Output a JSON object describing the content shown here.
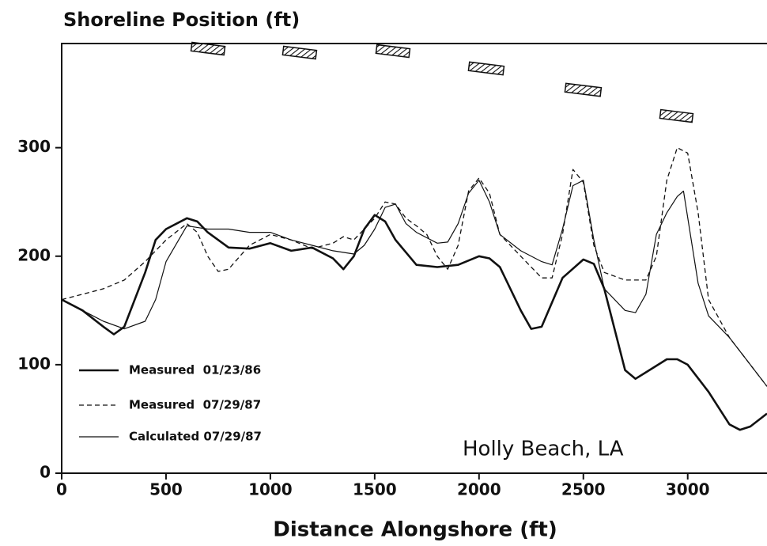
{
  "chart_data": {
    "type": "line",
    "title": "Shoreline Position (ft)",
    "xlabel": "Distance Alongshore (ft)",
    "annotation": "Holly Beach, LA",
    "xlim": [
      0,
      3380
    ],
    "ylim": [
      0,
      396
    ],
    "xticks": [
      0,
      500,
      1000,
      1500,
      2000,
      2500,
      3000
    ],
    "yticks": [
      0,
      100,
      200,
      300
    ],
    "legend": "lower left",
    "series": [
      {
        "name": "Measured  01/23/86",
        "color": "#111111",
        "style": "solid",
        "width": 2.6,
        "x": [
          0,
          100,
          200,
          250,
          300,
          400,
          450,
          500,
          600,
          650,
          700,
          800,
          900,
          1000,
          1100,
          1200,
          1300,
          1350,
          1400,
          1450,
          1500,
          1550,
          1600,
          1700,
          1800,
          1900,
          2000,
          2050,
          2100,
          2200,
          2250,
          2300,
          2400,
          2500,
          2550,
          2600,
          2700,
          2750,
          2800,
          2900,
          2950,
          3000,
          3100,
          3200,
          3250,
          3300,
          3380
        ],
        "values": [
          160,
          150,
          135,
          128,
          135,
          185,
          215,
          225,
          235,
          232,
          222,
          208,
          207,
          212,
          205,
          208,
          198,
          188,
          200,
          225,
          238,
          232,
          215,
          192,
          190,
          192,
          200,
          198,
          190,
          150,
          133,
          135,
          180,
          197,
          193,
          170,
          95,
          87,
          93,
          105,
          105,
          100,
          75,
          45,
          40,
          43,
          55
        ]
      },
      {
        "name": "Measured  07/29/87",
        "color": "#111111",
        "style": "dashed",
        "width": 1.3,
        "x": [
          0,
          100,
          200,
          300,
          400,
          500,
          600,
          650,
          700,
          750,
          800,
          900,
          1000,
          1100,
          1200,
          1300,
          1350,
          1400,
          1500,
          1550,
          1600,
          1650,
          1700,
          1750,
          1800,
          1850,
          1900,
          1950,
          2000,
          2050,
          2100,
          2200,
          2300,
          2350,
          2400,
          2450,
          2500,
          2550,
          2600,
          2700,
          2800,
          2850,
          2900,
          2950,
          3000,
          3050,
          3100,
          3200,
          3300,
          3380
        ],
        "values": [
          160,
          165,
          170,
          178,
          195,
          215,
          230,
          222,
          200,
          186,
          188,
          210,
          220,
          215,
          207,
          212,
          218,
          215,
          235,
          250,
          248,
          235,
          228,
          220,
          200,
          188,
          210,
          260,
          272,
          258,
          220,
          200,
          180,
          180,
          220,
          280,
          268,
          210,
          185,
          178,
          178,
          200,
          270,
          300,
          295,
          240,
          160,
          125,
          100,
          80
        ]
      },
      {
        "name": "Calculated 07/29/87",
        "color": "#111111",
        "style": "solid",
        "width": 1.2,
        "x": [
          0,
          100,
          200,
          300,
          400,
          450,
          500,
          600,
          700,
          800,
          900,
          1000,
          1100,
          1200,
          1300,
          1400,
          1450,
          1500,
          1550,
          1600,
          1650,
          1700,
          1800,
          1850,
          1900,
          1950,
          2000,
          2050,
          2100,
          2200,
          2300,
          2350,
          2400,
          2450,
          2500,
          2550,
          2600,
          2700,
          2750,
          2800,
          2850,
          2900,
          2950,
          2980,
          3050,
          3100,
          3200,
          3300,
          3380
        ],
        "values": [
          160,
          150,
          140,
          133,
          140,
          160,
          195,
          228,
          225,
          225,
          222,
          222,
          215,
          210,
          205,
          202,
          210,
          225,
          245,
          248,
          230,
          222,
          212,
          213,
          230,
          258,
          270,
          250,
          220,
          205,
          195,
          192,
          225,
          265,
          270,
          215,
          170,
          150,
          148,
          165,
          220,
          240,
          255,
          260,
          175,
          145,
          125,
          100,
          80
        ]
      }
    ]
  }
}
